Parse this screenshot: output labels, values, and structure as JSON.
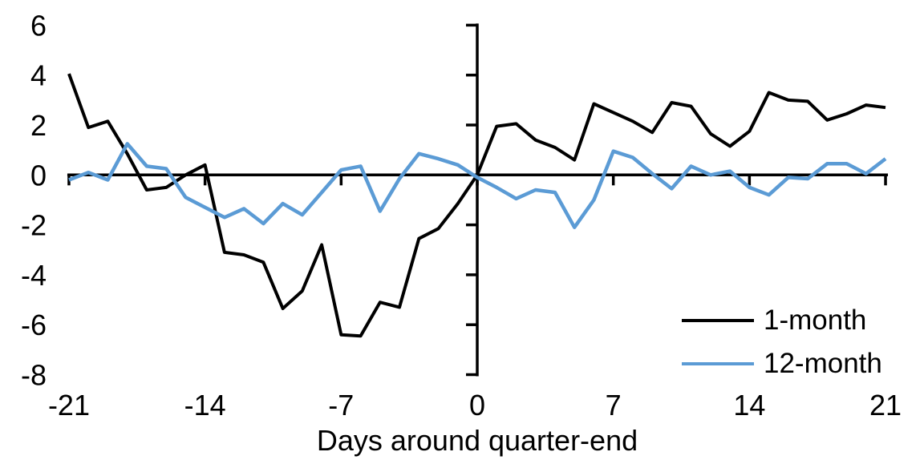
{
  "chart_data": {
    "type": "line",
    "title": "",
    "xlabel": "Days around quarter-end",
    "ylabel": "",
    "xlim": [
      -21,
      21
    ],
    "ylim": [
      -8,
      6
    ],
    "xticks": [
      -21,
      -14,
      -7,
      0,
      7,
      14,
      21
    ],
    "yticks": [
      6,
      4,
      2,
      0,
      -2,
      -4,
      -6,
      -8
    ],
    "grid": false,
    "legend_position": "lower-right",
    "axis_color": "#000000",
    "x": [
      -21,
      -20,
      -19,
      -18,
      -17,
      -16,
      -15,
      -14,
      -13,
      -12,
      -11,
      -10,
      -9,
      -8,
      -7,
      -6,
      -5,
      -4,
      -3,
      -2,
      -1,
      0,
      1,
      2,
      3,
      4,
      5,
      6,
      7,
      8,
      9,
      10,
      11,
      12,
      13,
      14,
      15,
      16,
      17,
      18,
      19,
      20,
      21
    ],
    "series": [
      {
        "name": "1-month",
        "color": "#000000",
        "stroke_width": 4,
        "values": [
          4.05,
          1.9,
          2.15,
          0.85,
          -0.6,
          -0.5,
          0.0,
          0.4,
          -3.1,
          -3.2,
          -3.5,
          -5.35,
          -4.65,
          -2.8,
          -6.4,
          -6.45,
          -5.1,
          -5.3,
          -2.55,
          -2.15,
          -1.15,
          0.0,
          1.95,
          2.05,
          1.4,
          1.1,
          0.6,
          2.85,
          2.5,
          2.15,
          1.7,
          2.9,
          2.75,
          1.65,
          1.15,
          1.75,
          3.3,
          3.0,
          2.95,
          2.2,
          2.45,
          2.8,
          2.7
        ]
      },
      {
        "name": "12-month",
        "color": "#5B9BD5",
        "stroke_width": 4.5,
        "values": [
          -0.2,
          0.1,
          -0.2,
          1.25,
          0.35,
          0.25,
          -0.9,
          -1.3,
          -1.7,
          -1.35,
          -1.95,
          -1.15,
          -1.6,
          -0.7,
          0.2,
          0.35,
          -1.45,
          -0.15,
          0.85,
          0.65,
          0.4,
          -0.1,
          -0.5,
          -0.95,
          -0.6,
          -0.7,
          -2.1,
          -1.0,
          0.95,
          0.7,
          0.05,
          -0.55,
          0.35,
          0.0,
          0.15,
          -0.5,
          -0.8,
          -0.1,
          -0.15,
          0.45,
          0.45,
          0.05,
          0.65
        ]
      }
    ]
  },
  "legend": {
    "items": [
      {
        "label": "1-month"
      },
      {
        "label": "12-month"
      }
    ]
  }
}
